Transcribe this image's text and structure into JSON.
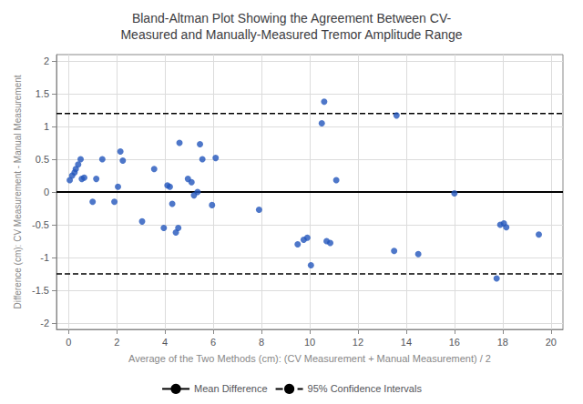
{
  "chart_data": {
    "type": "scatter",
    "title": "Bland-Altman Plot Showing the Agreement Between CV-\nMeasured and Manually-Measured Tremor Amplitude Range",
    "xlabel": "Average of the Two Methods (cm): (CV Measurement + Manual Measurement) / 2",
    "ylabel": "Difference (cm): CV Measurement - Manual Measurement",
    "x": [
      0.05,
      0.15,
      0.25,
      0.3,
      0.4,
      0.5,
      0.55,
      0.65,
      1.0,
      1.15,
      1.4,
      1.9,
      2.05,
      2.15,
      2.25,
      3.05,
      3.55,
      3.95,
      4.1,
      4.2,
      4.3,
      4.45,
      4.55,
      4.6,
      4.95,
      5.1,
      5.2,
      5.35,
      5.45,
      5.55,
      5.95,
      6.1,
      7.9,
      9.5,
      9.75,
      9.9,
      10.05,
      10.5,
      10.6,
      10.7,
      10.85,
      11.1,
      13.5,
      13.6,
      14.5,
      16.0,
      17.75,
      17.9,
      18.05,
      18.15,
      19.5
    ],
    "values": [
      0.18,
      0.25,
      0.3,
      0.35,
      0.42,
      0.5,
      0.2,
      0.22,
      -0.15,
      0.2,
      0.5,
      -0.15,
      0.08,
      0.62,
      0.48,
      -0.45,
      0.35,
      -0.55,
      0.1,
      0.08,
      -0.18,
      -0.62,
      -0.55,
      0.75,
      0.2,
      0.15,
      -0.05,
      0.0,
      0.73,
      0.5,
      -0.2,
      0.52,
      -0.27,
      -0.8,
      -0.73,
      -0.7,
      -1.12,
      1.05,
      1.38,
      -0.75,
      -0.78,
      0.18,
      -0.9,
      1.17,
      -0.95,
      -0.02,
      -1.32,
      -0.5,
      -0.48,
      -0.54,
      -0.65
    ],
    "color": "#2255bb",
    "hlines": [
      {
        "name": "Mean Difference",
        "values": [
          0.0
        ],
        "color": "#000000",
        "line_style": "solid"
      },
      {
        "name": "95% Confidence Intervals",
        "values": [
          1.2,
          -1.25
        ],
        "color": "#000000",
        "line_style": "dashed"
      }
    ],
    "xlim": [
      -0.5,
      20.5
    ],
    "ylim": [
      -2.1,
      2.1
    ],
    "xticks": [
      0,
      2,
      4,
      6,
      8,
      10,
      12,
      14,
      16,
      18,
      20
    ],
    "yticks": [
      -2,
      -1.5,
      -1,
      -0.5,
      0,
      0.5,
      1,
      1.5,
      2
    ],
    "grid": true,
    "legend": "bottom"
  }
}
